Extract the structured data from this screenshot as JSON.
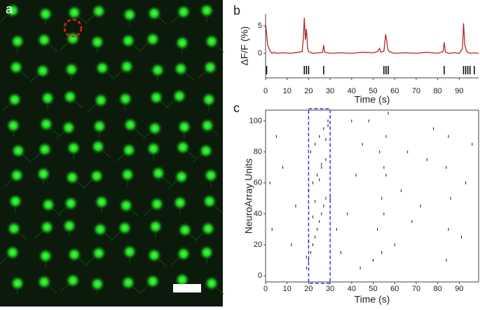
{
  "image_panel": {
    "label": "a"
  },
  "chart_data": [
    {
      "type": "line",
      "label": "b",
      "y_label": "ΔF/F (%)",
      "x_label": "Time (s)",
      "x": [
        0,
        1,
        2,
        3,
        4,
        5,
        8,
        12,
        15,
        17,
        17.6,
        18,
        18.5,
        19,
        19.5,
        20,
        22,
        25,
        26.5,
        27,
        27.5,
        30,
        35,
        40,
        45,
        50,
        52,
        53,
        53.5,
        55,
        55.8,
        56.2,
        56.8,
        57.5,
        60,
        65,
        70,
        75,
        80,
        82.5,
        83,
        83.6,
        85,
        88,
        90,
        91.5,
        92,
        92.6,
        93.5,
        95,
        97,
        99
      ],
      "series": [
        {
          "color": "#b3272a",
          "values": [
            5.5,
            1.5,
            0.5,
            0,
            0.2,
            0,
            0.1,
            0,
            0.2,
            0.3,
            3,
            6.5,
            2.5,
            4.5,
            1,
            0.3,
            0,
            0.1,
            0.2,
            1.5,
            0.2,
            0,
            0.1,
            0,
            0.2,
            0.1,
            0.3,
            0.9,
            0.2,
            0.4,
            3.5,
            2.5,
            0.8,
            0.3,
            0,
            0.1,
            0,
            0.2,
            0,
            0.3,
            2,
            0.2,
            0,
            0.1,
            0,
            0.8,
            5.5,
            1.5,
            0.3,
            0,
            0.1,
            0
          ]
        }
      ],
      "events": [
        0.5,
        18,
        19,
        20,
        27,
        55,
        56,
        57,
        83,
        92,
        93,
        94,
        95,
        97
      ],
      "xlim": [
        0,
        99
      ],
      "xticks": [
        0,
        10,
        20,
        30,
        40,
        50,
        60,
        70,
        80,
        90
      ],
      "ylim": [
        -4.5,
        7.2
      ],
      "yticks": [
        0,
        5
      ]
    },
    {
      "type": "scatter",
      "label": "c",
      "y_label": "NeuroArray Units",
      "x_label": "Time (s)",
      "x": [
        19,
        20,
        21,
        22,
        23,
        24,
        25,
        26,
        27,
        28,
        20,
        22,
        24,
        26,
        28,
        21,
        23,
        25,
        27,
        29,
        19,
        22,
        25,
        28,
        20,
        23,
        26,
        29,
        12,
        14,
        8,
        5,
        3,
        2,
        35,
        38,
        42,
        45,
        48,
        50,
        52,
        54,
        55,
        56,
        57,
        60,
        63,
        66,
        68,
        72,
        75,
        78,
        84,
        85,
        86,
        84,
        85,
        91,
        93,
        96,
        54,
        55,
        56,
        53,
        40,
        44,
        30,
        33
      ],
      "values": [
        5,
        10,
        15,
        20,
        25,
        30,
        35,
        40,
        45,
        50,
        55,
        60,
        65,
        70,
        75,
        80,
        85,
        90,
        95,
        100,
        12,
        38,
        62,
        88,
        22,
        48,
        72,
        97,
        20,
        45,
        70,
        90,
        30,
        60,
        15,
        40,
        65,
        85,
        100,
        10,
        30,
        50,
        70,
        90,
        105,
        20,
        55,
        80,
        35,
        45,
        75,
        95,
        10,
        30,
        50,
        70,
        90,
        25,
        60,
        85,
        15,
        40,
        65,
        80,
        100,
        5,
        50,
        30
      ],
      "color": "#111111",
      "highlight": [
        20,
        30
      ],
      "highlight_color": "#2a3fd0",
      "xlim": [
        0,
        99
      ],
      "xticks": [
        0,
        10,
        20,
        30,
        40,
        50,
        60,
        70,
        80,
        90
      ],
      "ylim": [
        -4,
        107
      ],
      "yticks": [
        0,
        20,
        40,
        60,
        80,
        100
      ]
    }
  ]
}
